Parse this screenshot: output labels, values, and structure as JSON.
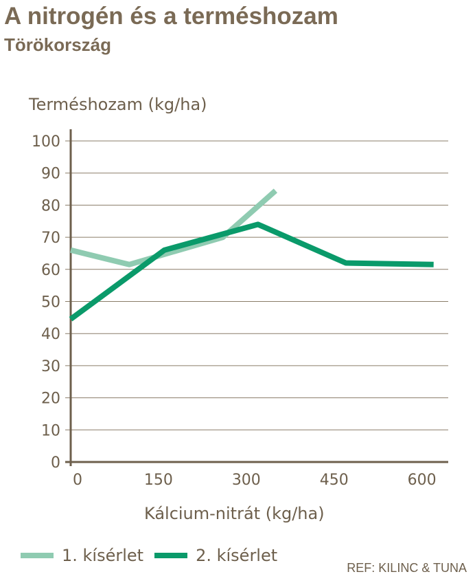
{
  "header": {
    "title": "A nitrogén és a terméshozam",
    "subtitle": "Törökország"
  },
  "ref": "REF: KILINC & TUNA",
  "colors": {
    "text": "#7a6a55",
    "grid": "#8a7c68",
    "series1": "#8fcbb1",
    "series2": "#0a9a6a"
  },
  "chart_data": {
    "type": "line",
    "ylabel": "Terméshozam (kg/ha)",
    "xlabel": "Kálcium-nitrát (kg/ha)",
    "xlim": [
      0,
      645
    ],
    "ylim": [
      0,
      100
    ],
    "xticks": [
      "0",
      "150",
      "300",
      "450",
      "600"
    ],
    "xtick_values": [
      0,
      150,
      300,
      450,
      600
    ],
    "yticks": [
      "0",
      "10",
      "20",
      "30",
      "40",
      "50",
      "60",
      "70",
      "80",
      "90",
      "100"
    ],
    "ytick_values": [
      0,
      10,
      20,
      30,
      40,
      50,
      60,
      70,
      80,
      90,
      100
    ],
    "grid": true,
    "legend_position": "bottom-left",
    "series": [
      {
        "name": "1. kísérlet",
        "color": "#8fcbb1",
        "x": [
          0,
          100,
          260,
          350
        ],
        "y": [
          66,
          61.5,
          70,
          84.5
        ]
      },
      {
        "name": "2. kísérlet",
        "color": "#0a9a6a",
        "x": [
          0,
          160,
          320,
          470,
          620
        ],
        "y": [
          44.5,
          66,
          74,
          62,
          61.5
        ]
      }
    ]
  }
}
